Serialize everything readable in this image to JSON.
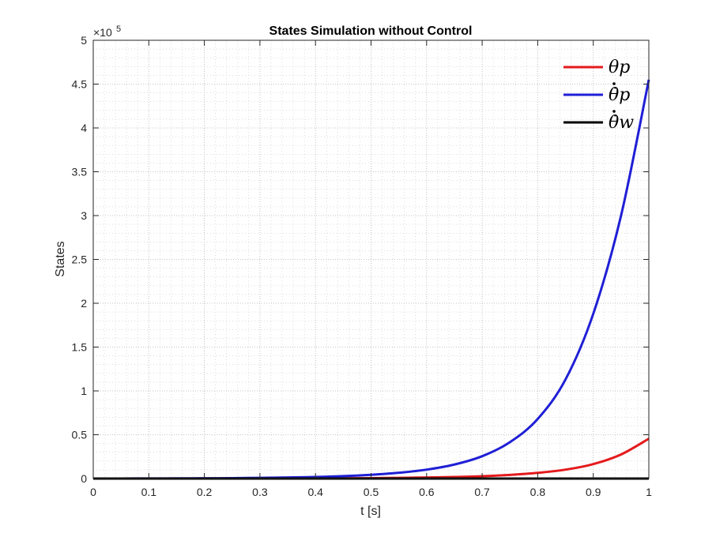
{
  "chart_data": {
    "type": "line",
    "title": "States Simulation without Control",
    "xlabel": "t [s]",
    "ylabel": "States",
    "xlim": [
      0,
      1
    ],
    "ylim": [
      0,
      500000
    ],
    "y_exponent_label": "×10",
    "y_exponent_power": "5",
    "x_ticks": [
      "0",
      "0.1",
      "0.2",
      "0.3",
      "0.4",
      "0.5",
      "0.6",
      "0.7",
      "0.8",
      "0.9",
      "1"
    ],
    "y_ticks": [
      "0",
      "0.5",
      "1",
      "1.5",
      "2",
      "2.5",
      "3",
      "3.5",
      "4",
      "4.5",
      "5"
    ],
    "grid": true,
    "minor_grid": true,
    "legend_position": "top-right",
    "x": [
      0,
      0.05,
      0.1,
      0.15,
      0.2,
      0.25,
      0.3,
      0.35,
      0.4,
      0.45,
      0.5,
      0.55,
      0.6,
      0.65,
      0.7,
      0.75,
      0.8,
      0.85,
      0.9,
      0.95,
      1
    ],
    "series": [
      {
        "name": "θp",
        "color": "#e41a1c",
        "values": [
          0,
          0,
          0,
          0,
          0,
          0,
          0,
          100,
          200,
          300,
          500,
          800,
          1200,
          1800,
          2700,
          4200,
          6500,
          10200,
          16500,
          27500,
          45500
        ]
      },
      {
        "name": "θ̇p",
        "color": "#1f1fd6",
        "values": [
          0,
          50,
          100,
          200,
          300,
          500,
          800,
          1200,
          1800,
          2800,
          4300,
          6600,
          10200,
          16000,
          25500,
          41500,
          68000,
          113000,
          188000,
          300000,
          455000
        ]
      },
      {
        "name": "θ̇w",
        "color": "#000000",
        "values": [
          0,
          0,
          0,
          0,
          0,
          0,
          0,
          0,
          0,
          0,
          0,
          0,
          0,
          0,
          0,
          0,
          0,
          0,
          0,
          0,
          0
        ]
      }
    ]
  }
}
